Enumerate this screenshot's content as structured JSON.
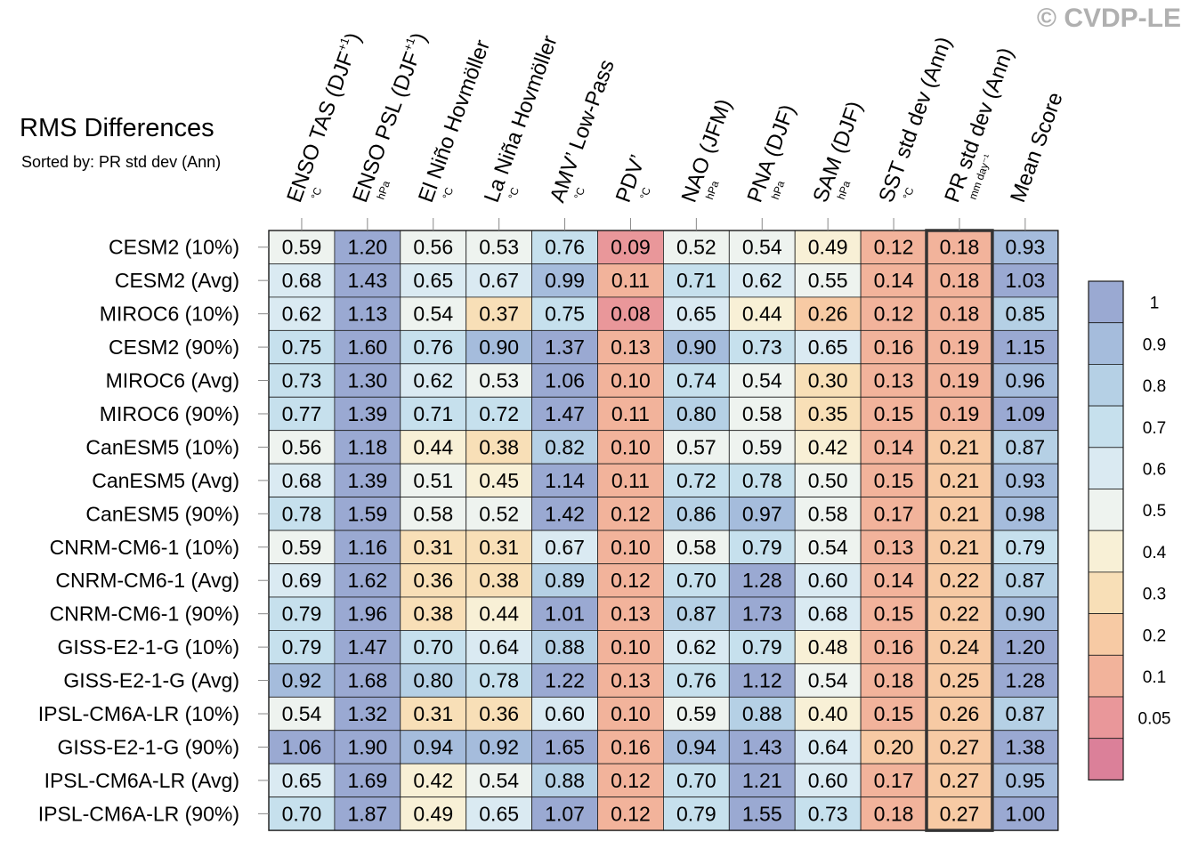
{
  "header": {
    "title": "RMS Differences",
    "subtitle": "Sorted by: PR std dev (Ann)",
    "watermark": "© CVDP-LE"
  },
  "chart_data": {
    "type": "heatmap",
    "title": "RMS Differences",
    "subtitle": "Sorted by: PR std dev (Ann)",
    "columns": [
      {
        "name": "ENSO TAS (DJF",
        "sup": "+1",
        "close": ")",
        "unit": "°C"
      },
      {
        "name": "ENSO PSL (DJF",
        "sup": "+1",
        "close": ")",
        "unit": "hPa"
      },
      {
        "name": "El Niño Hovmöller",
        "sup": "",
        "close": "",
        "unit": "°C"
      },
      {
        "name": "La Niña Hovmöller",
        "sup": "",
        "close": "",
        "unit": "°C"
      },
      {
        "name": "AMV’ Low-Pass",
        "sup": "",
        "close": "",
        "unit": "°C"
      },
      {
        "name": "PDV’",
        "sup": "",
        "close": "",
        "unit": "°C"
      },
      {
        "name": "NAO (JFM)",
        "sup": "",
        "close": "",
        "unit": "hPa"
      },
      {
        "name": "PNA (DJF)",
        "sup": "",
        "close": "",
        "unit": "hPa"
      },
      {
        "name": "SAM (DJF)",
        "sup": "",
        "close": "",
        "unit": "hPa"
      },
      {
        "name": "SST std dev (Ann)",
        "sup": "",
        "close": "",
        "unit": "°C"
      },
      {
        "name": "PR std dev (Ann)",
        "sup": "",
        "close": "",
        "unit": "mm day⁻¹"
      },
      {
        "name": "Mean Score",
        "sup": "",
        "close": "",
        "unit": ""
      }
    ],
    "sorted_column_index": 10,
    "rows": [
      {
        "label": "CESM2 (10%)",
        "values": [
          "0.59",
          "1.20",
          "0.56",
          "0.53",
          "0.76",
          "0.09",
          "0.52",
          "0.54",
          "0.49",
          "0.12",
          "0.18",
          "0.93"
        ]
      },
      {
        "label": "CESM2 (Avg)",
        "values": [
          "0.68",
          "1.43",
          "0.65",
          "0.67",
          "0.99",
          "0.11",
          "0.71",
          "0.62",
          "0.55",
          "0.14",
          "0.18",
          "1.03"
        ]
      },
      {
        "label": "MIROC6 (10%)",
        "values": [
          "0.62",
          "1.13",
          "0.54",
          "0.37",
          "0.75",
          "0.08",
          "0.65",
          "0.44",
          "0.26",
          "0.12",
          "0.18",
          "0.85"
        ]
      },
      {
        "label": "CESM2 (90%)",
        "values": [
          "0.75",
          "1.60",
          "0.76",
          "0.90",
          "1.37",
          "0.13",
          "0.90",
          "0.73",
          "0.65",
          "0.16",
          "0.19",
          "1.15"
        ]
      },
      {
        "label": "MIROC6 (Avg)",
        "values": [
          "0.73",
          "1.30",
          "0.62",
          "0.53",
          "1.06",
          "0.10",
          "0.74",
          "0.54",
          "0.30",
          "0.13",
          "0.19",
          "0.96"
        ]
      },
      {
        "label": "MIROC6 (90%)",
        "values": [
          "0.77",
          "1.39",
          "0.71",
          "0.72",
          "1.47",
          "0.11",
          "0.80",
          "0.58",
          "0.35",
          "0.15",
          "0.19",
          "1.09"
        ]
      },
      {
        "label": "CanESM5 (10%)",
        "values": [
          "0.56",
          "1.18",
          "0.44",
          "0.38",
          "0.82",
          "0.10",
          "0.57",
          "0.59",
          "0.42",
          "0.14",
          "0.21",
          "0.87"
        ]
      },
      {
        "label": "CanESM5 (Avg)",
        "values": [
          "0.68",
          "1.39",
          "0.51",
          "0.45",
          "1.14",
          "0.11",
          "0.72",
          "0.78",
          "0.50",
          "0.15",
          "0.21",
          "0.93"
        ]
      },
      {
        "label": "CanESM5 (90%)",
        "values": [
          "0.78",
          "1.59",
          "0.58",
          "0.52",
          "1.42",
          "0.12",
          "0.86",
          "0.97",
          "0.58",
          "0.17",
          "0.21",
          "0.98"
        ]
      },
      {
        "label": "CNRM-CM6-1 (10%)",
        "values": [
          "0.59",
          "1.16",
          "0.31",
          "0.31",
          "0.67",
          "0.10",
          "0.58",
          "0.79",
          "0.54",
          "0.13",
          "0.21",
          "0.79"
        ]
      },
      {
        "label": "CNRM-CM6-1 (Avg)",
        "values": [
          "0.69",
          "1.62",
          "0.36",
          "0.38",
          "0.89",
          "0.12",
          "0.70",
          "1.28",
          "0.60",
          "0.14",
          "0.22",
          "0.87"
        ]
      },
      {
        "label": "CNRM-CM6-1 (90%)",
        "values": [
          "0.79",
          "1.96",
          "0.38",
          "0.44",
          "1.01",
          "0.13",
          "0.87",
          "1.73",
          "0.68",
          "0.15",
          "0.22",
          "0.90"
        ]
      },
      {
        "label": "GISS-E2-1-G (10%)",
        "values": [
          "0.79",
          "1.47",
          "0.70",
          "0.64",
          "0.88",
          "0.10",
          "0.62",
          "0.79",
          "0.48",
          "0.16",
          "0.24",
          "1.20"
        ]
      },
      {
        "label": "GISS-E2-1-G (Avg)",
        "values": [
          "0.92",
          "1.68",
          "0.80",
          "0.78",
          "1.22",
          "0.13",
          "0.76",
          "1.12",
          "0.54",
          "0.18",
          "0.25",
          "1.28"
        ]
      },
      {
        "label": "IPSL-CM6A-LR (10%)",
        "values": [
          "0.54",
          "1.32",
          "0.31",
          "0.36",
          "0.60",
          "0.10",
          "0.59",
          "0.88",
          "0.40",
          "0.15",
          "0.26",
          "0.87"
        ]
      },
      {
        "label": "GISS-E2-1-G (90%)",
        "values": [
          "1.06",
          "1.90",
          "0.94",
          "0.92",
          "1.65",
          "0.16",
          "0.94",
          "1.43",
          "0.64",
          "0.20",
          "0.27",
          "1.38"
        ]
      },
      {
        "label": "IPSL-CM6A-LR (Avg)",
        "values": [
          "0.65",
          "1.69",
          "0.42",
          "0.54",
          "0.88",
          "0.12",
          "0.70",
          "1.21",
          "0.60",
          "0.17",
          "0.27",
          "0.95"
        ]
      },
      {
        "label": "IPSL-CM6A-LR (90%)",
        "values": [
          "0.70",
          "1.87",
          "0.49",
          "0.65",
          "1.07",
          "0.12",
          "0.79",
          "1.55",
          "0.73",
          "0.18",
          "0.27",
          "1.00"
        ]
      }
    ],
    "colorbar": {
      "labels": [
        "1",
        "0.9",
        "0.8",
        "0.7",
        "0.6",
        "0.5",
        "0.4",
        "0.3",
        "0.2",
        "0.1",
        "0.05"
      ],
      "colors": [
        "#9aa9d2",
        "#a5bcdc",
        "#b5d0e5",
        "#c6e0ed",
        "#daeaf2",
        "#eef3ef",
        "#f8f0d6",
        "#f8dfb7",
        "#f7caa4",
        "#f2b39b",
        "#e9979a",
        "#db8099"
      ]
    }
  }
}
